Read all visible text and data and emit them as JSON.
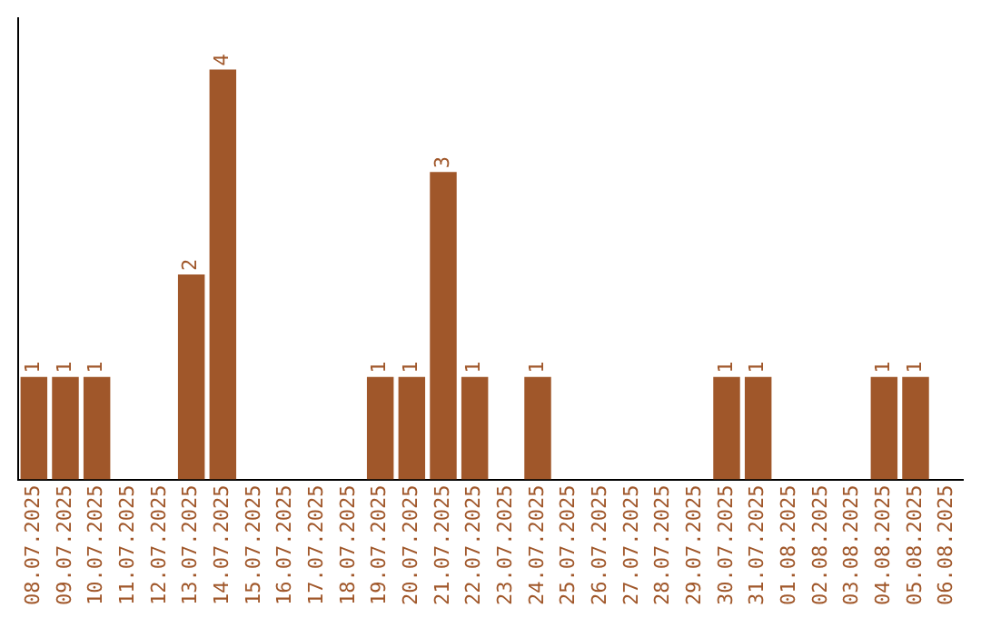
{
  "chart_data": {
    "type": "bar",
    "categories": [
      "08.07.2025",
      "09.07.2025",
      "10.07.2025",
      "11.07.2025",
      "12.07.2025",
      "13.07.2025",
      "14.07.2025",
      "15.07.2025",
      "16.07.2025",
      "17.07.2025",
      "18.07.2025",
      "19.07.2025",
      "20.07.2025",
      "21.07.2025",
      "22.07.2025",
      "23.07.2025",
      "24.07.2025",
      "25.07.2025",
      "26.07.2025",
      "27.07.2025",
      "28.07.2025",
      "29.07.2025",
      "30.07.2025",
      "31.07.2025",
      "01.08.2025",
      "02.08.2025",
      "03.08.2025",
      "04.08.2025",
      "05.08.2025",
      "06.08.2025"
    ],
    "values": [
      1,
      1,
      1,
      0,
      0,
      2,
      4,
      0,
      0,
      0,
      0,
      1,
      1,
      3,
      1,
      0,
      1,
      0,
      0,
      0,
      0,
      0,
      1,
      1,
      0,
      0,
      0,
      1,
      1,
      0
    ],
    "value_labels": [
      "1",
      "1",
      "1",
      null,
      null,
      "2",
      "4",
      null,
      null,
      null,
      null,
      "1",
      "1",
      "3",
      "1",
      null,
      "1",
      null,
      null,
      null,
      null,
      null,
      "1",
      "1",
      null,
      null,
      null,
      "1",
      "1",
      null
    ],
    "color": "#a0572a",
    "grid": false,
    "legend": false,
    "tick_labels": "x"
  }
}
